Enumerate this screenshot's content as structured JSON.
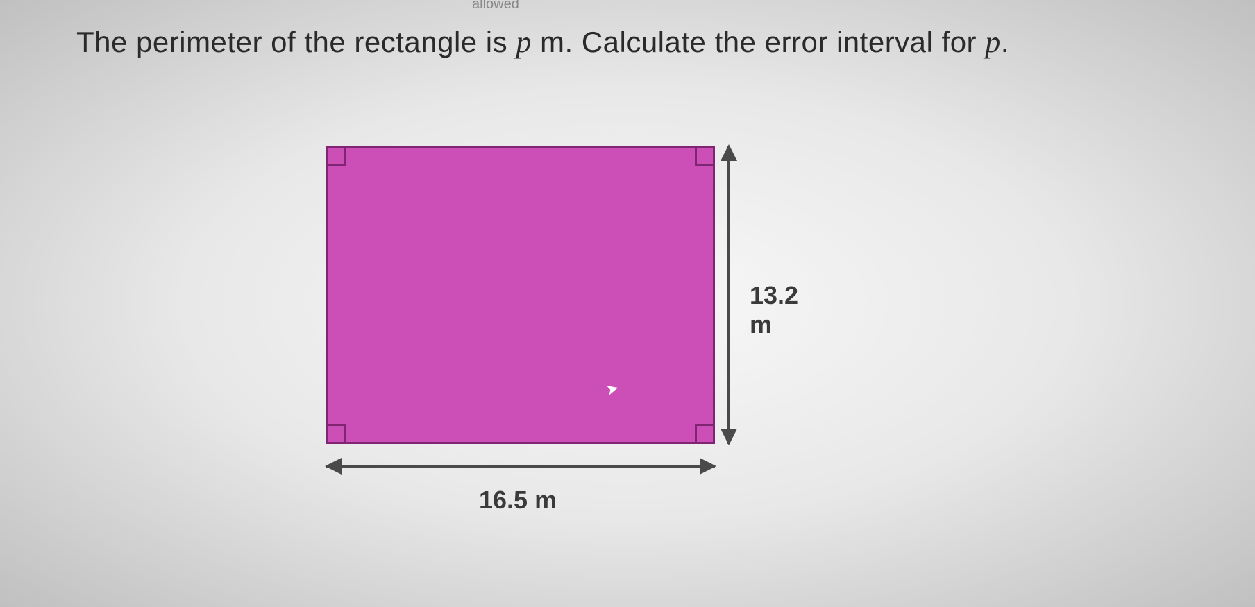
{
  "question": {
    "prefix": "The perimeter of the rectangle is ",
    "var1": "p",
    "unit1": " m",
    "middle": ". Calculate the error interval for ",
    "var2": "p",
    "suffix": "."
  },
  "diagram": {
    "type": "rectangle",
    "width_label": "16.5 m",
    "height_label": "13.2 m",
    "width_value": 16.5,
    "height_value": 13.2,
    "fill_color": "#cc4fb8",
    "border_color": "#7f2573",
    "border_width": 3,
    "angle_marker_size": 26,
    "arrow_color": "#4a4a4a",
    "label_fontsize": 36,
    "label_fontweight": "bold",
    "label_color": "#3a3a3a"
  },
  "fragment_top": "allowed",
  "background": {
    "center": "#f8f8f8",
    "edge": "#c0c0c0"
  }
}
